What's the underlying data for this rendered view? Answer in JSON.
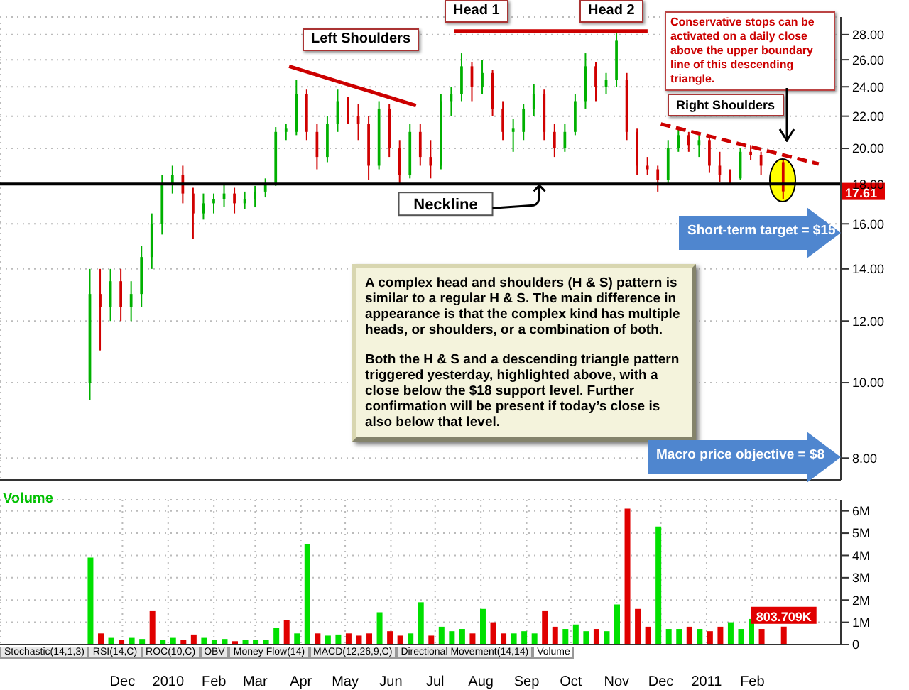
{
  "chart_data": [
    {
      "type": "candlestick",
      "x": [
        "2009-11-09",
        "2009-11-16",
        "2009-11-23",
        "2009-11-30",
        "2009-12-07",
        "2009-12-14",
        "2009-12-21",
        "2009-12-28",
        "2010-01-04",
        "2010-01-11",
        "2010-01-18",
        "2010-01-25",
        "2010-02-01",
        "2010-02-08",
        "2010-02-15",
        "2010-02-22",
        "2010-03-01",
        "2010-03-08",
        "2010-03-15",
        "2010-03-22",
        "2010-03-29",
        "2010-04-05",
        "2010-04-12",
        "2010-04-19",
        "2010-04-26",
        "2010-05-03",
        "2010-05-10",
        "2010-05-17",
        "2010-05-24",
        "2010-05-31",
        "2010-06-07",
        "2010-06-14",
        "2010-06-21",
        "2010-06-28",
        "2010-07-05",
        "2010-07-12",
        "2010-07-19",
        "2010-07-26",
        "2010-08-02",
        "2010-08-09",
        "2010-08-16",
        "2010-08-23",
        "2010-08-30",
        "2010-09-06",
        "2010-09-13",
        "2010-09-20",
        "2010-09-27",
        "2010-10-04",
        "2010-10-11",
        "2010-10-18",
        "2010-10-25",
        "2010-11-01",
        "2010-11-08",
        "2010-11-15",
        "2010-11-22",
        "2010-11-29",
        "2010-12-06",
        "2010-12-13",
        "2010-12-20",
        "2010-12-27",
        "2011-01-03",
        "2011-01-10",
        "2011-01-17",
        "2011-01-24",
        "2011-01-31",
        "2011-02-07",
        "2011-02-22"
      ],
      "ohlc": [
        [
          10,
          14,
          9.5,
          13
        ],
        [
          13,
          14,
          11,
          12.5
        ],
        [
          12.5,
          14,
          12,
          13.5
        ],
        [
          13.5,
          14,
          12,
          12.5
        ],
        [
          12.5,
          13.5,
          12,
          13
        ],
        [
          13,
          15,
          12.5,
          14.5
        ],
        [
          14.5,
          16.5,
          14,
          16
        ],
        [
          16,
          18.5,
          15.5,
          18
        ],
        [
          18,
          19,
          17.5,
          18.5
        ],
        [
          18.5,
          19,
          17,
          17.5
        ],
        [
          17.5,
          17.8,
          15.3,
          16.5
        ],
        [
          16.5,
          17.5,
          16.2,
          17
        ],
        [
          17,
          17.5,
          16.5,
          17.2
        ],
        [
          17.2,
          18,
          16.8,
          17.5
        ],
        [
          17.5,
          17.8,
          16.5,
          17
        ],
        [
          17,
          17.6,
          16.7,
          17.2
        ],
        [
          17.2,
          17.9,
          16.8,
          17.6
        ],
        [
          17.6,
          18.3,
          17.3,
          18
        ],
        [
          18,
          21.3,
          17.9,
          21
        ],
        [
          21,
          21.5,
          20.5,
          21.2
        ],
        [
          21,
          24.5,
          20.8,
          23.5
        ],
        [
          23.5,
          23.8,
          20.5,
          21
        ],
        [
          21,
          21.5,
          18.8,
          19.5
        ],
        [
          19.5,
          22,
          19.2,
          21.5
        ],
        [
          21.5,
          23.8,
          21,
          23
        ],
        [
          23,
          23.3,
          21.5,
          22
        ],
        [
          22,
          22.8,
          20.5,
          21.5
        ],
        [
          21.5,
          22,
          18.2,
          19
        ],
        [
          19,
          23,
          18.8,
          22.5
        ],
        [
          22.5,
          22.8,
          19.5,
          20
        ],
        [
          20,
          20.5,
          18,
          18.5
        ],
        [
          18.5,
          21.5,
          18.3,
          21
        ],
        [
          21,
          21.5,
          19,
          19.5
        ],
        [
          19.5,
          20.5,
          18.3,
          19
        ],
        [
          19,
          23.5,
          18.8,
          23
        ],
        [
          23,
          24,
          22,
          23.5
        ],
        [
          23.5,
          26.5,
          23,
          25.5
        ],
        [
          25.5,
          25.8,
          23,
          24
        ],
        [
          24,
          26,
          23.5,
          25
        ],
        [
          25,
          25.2,
          22,
          22.5
        ],
        [
          22.5,
          23,
          20.5,
          21
        ],
        [
          21,
          21.8,
          19.8,
          21.2
        ],
        [
          21,
          22.8,
          20.5,
          22.5
        ],
        [
          22.5,
          24.2,
          22,
          23.5
        ],
        [
          23.5,
          23.8,
          20.5,
          21
        ],
        [
          21,
          21.5,
          19.5,
          20
        ],
        [
          20,
          21.5,
          19.8,
          21
        ],
        [
          21,
          23.5,
          20.8,
          23
        ],
        [
          23,
          26.5,
          22.5,
          25.5
        ],
        [
          25.5,
          25.8,
          23,
          24
        ],
        [
          24,
          25,
          23.5,
          24.5
        ],
        [
          24.5,
          28.3,
          24,
          27.5
        ],
        [
          24.5,
          25,
          20.5,
          21
        ],
        [
          21,
          21.2,
          18.5,
          19
        ],
        [
          19,
          19.5,
          18.5,
          18.8
        ],
        [
          18.8,
          19,
          17.6,
          18.2
        ],
        [
          18.2,
          20.5,
          18,
          20
        ],
        [
          20,
          21.3,
          19.8,
          20.8
        ],
        [
          20.8,
          21,
          19.8,
          20.2
        ],
        [
          20.2,
          20.8,
          19.5,
          20.5
        ],
        [
          20.5,
          20.6,
          18.6,
          19
        ],
        [
          19,
          19.8,
          18.1,
          18.5
        ],
        [
          18.5,
          18.8,
          18,
          18.3
        ],
        [
          18.3,
          20,
          18.2,
          19.8
        ],
        [
          19.8,
          20.2,
          19.3,
          19.6
        ],
        [
          19.6,
          19.8,
          18.5,
          19
        ],
        [
          19.2,
          19.3,
          17.2,
          17.61
        ]
      ],
      "colors": [
        "#00b000",
        "#d00000",
        "#00b000",
        "#d00000",
        "#00b000",
        "#00b000",
        "#00b000",
        "#00b000",
        "#00b000",
        "#d00000",
        "#d00000",
        "#00b000",
        "#00b000",
        "#00b000",
        "#d00000",
        "#00b000",
        "#00b000",
        "#00b000",
        "#00b000",
        "#00b000",
        "#00b000",
        "#d00000",
        "#d00000",
        "#00b000",
        "#00b000",
        "#d00000",
        "#d00000",
        "#d00000",
        "#00b000",
        "#d00000",
        "#d00000",
        "#00b000",
        "#d00000",
        "#d00000",
        "#00b000",
        "#00b000",
        "#00b000",
        "#d00000",
        "#00b000",
        "#d00000",
        "#d00000",
        "#00b000",
        "#00b000",
        "#00b000",
        "#d00000",
        "#d00000",
        "#00b000",
        "#00b000",
        "#00b000",
        "#d00000",
        "#00b000",
        "#00b000",
        "#d00000",
        "#d00000",
        "#d00000",
        "#d00000",
        "#00b000",
        "#00b000",
        "#d00000",
        "#00b000",
        "#d00000",
        "#d00000",
        "#d00000",
        "#00b000",
        "#d00000",
        "#d00000",
        "#d00000"
      ],
      "series": [
        {
          "type": "line",
          "color": "#cc0000",
          "x": [
            "2010-03-24",
            "2010-06-18"
          ],
          "values": [
            25.5,
            22.7
          ],
          "line_style": "solid"
        },
        {
          "type": "line",
          "color": "#cc0000",
          "x": [
            "2010-07-14",
            "2010-11-22"
          ],
          "values": [
            28.3,
            28.3
          ],
          "line_style": "solid"
        },
        {
          "type": "line",
          "color": "#cc0000",
          "x": [
            "2010-12-01",
            "2011-03-18"
          ],
          "values": [
            21.5,
            19.1
          ],
          "line_style": "dashed"
        }
      ],
      "ref_lines": [
        {
          "axis": "y",
          "value": 18,
          "label": "Neckline",
          "color": "#000000"
        }
      ],
      "log": true,
      "xlim": [
        "2009-09-09",
        "2011-04-02"
      ],
      "xticks": [
        {
          "value": "2009-12-01",
          "label": null
        },
        {
          "value": "2010-01-01",
          "label": null
        },
        {
          "value": "2010-02-01",
          "label": null
        },
        {
          "value": "2010-03-01",
          "label": null
        },
        {
          "value": "2010-04-01",
          "label": null
        },
        {
          "value": "2010-05-01",
          "label": null
        },
        {
          "value": "2010-06-01",
          "label": null
        },
        {
          "value": "2010-07-01",
          "label": null
        },
        {
          "value": "2010-08-01",
          "label": null
        },
        {
          "value": "2010-09-01",
          "label": null
        },
        {
          "value": "2010-10-01",
          "label": null
        },
        {
          "value": "2010-11-01",
          "label": null
        },
        {
          "value": "2010-12-01",
          "label": null
        },
        {
          "value": "2011-01-01",
          "label": null
        },
        {
          "value": "2011-02-01",
          "label": null
        }
      ],
      "ylim": [
        7.5,
        29.5
      ],
      "yticks": [
        {
          "value": 8,
          "label": "8.00"
        },
        {
          "value": 10,
          "label": "10.00"
        },
        {
          "value": 12,
          "label": "12.00"
        },
        {
          "value": 14,
          "label": "14.00"
        },
        {
          "value": 16,
          "label": "16.00"
        },
        {
          "value": 18,
          "label": "18.00"
        },
        {
          "value": 20,
          "label": "20.00"
        },
        {
          "value": 22,
          "label": "22.00"
        },
        {
          "value": 24,
          "label": "24.00"
        },
        {
          "value": 26,
          "label": "26.00"
        },
        {
          "value": 28,
          "label": "28.00"
        }
      ],
      "tick_labels": "y",
      "grid": true,
      "annotations": [
        "A complex head and shoulders (H & S) pattern is similar to a regular H & S. The main difference in appearance is that the complex kind has multiple heads, or shoulders, or a combination of both.",
        "Both the H & S and a descending triangle pattern triggered yesterday, highlighted above, with a close below the $18 support level. Further confirmation will be present if today’s close is also below that level.",
        "Conservative stops can be activated on a daily close above the upper boundary line of this descending triangle.",
        "Short-term target = $15",
        "Macro price objective = $8",
        "Head 1",
        "Head 2",
        "Left Shoulders",
        "Right Shoulders",
        "17.61"
      ]
    },
    {
      "type": "bar",
      "title": "Volume",
      "x": [
        "2009-11-09",
        "2009-11-16",
        "2009-11-23",
        "2009-11-30",
        "2009-12-07",
        "2009-12-14",
        "2009-12-21",
        "2009-12-28",
        "2010-01-04",
        "2010-01-11",
        "2010-01-18",
        "2010-01-25",
        "2010-02-01",
        "2010-02-08",
        "2010-02-15",
        "2010-02-22",
        "2010-03-01",
        "2010-03-08",
        "2010-03-15",
        "2010-03-22",
        "2010-03-29",
        "2010-04-05",
        "2010-04-12",
        "2010-04-19",
        "2010-04-26",
        "2010-05-03",
        "2010-05-10",
        "2010-05-17",
        "2010-05-24",
        "2010-05-31",
        "2010-06-07",
        "2010-06-14",
        "2010-06-21",
        "2010-06-28",
        "2010-07-05",
        "2010-07-12",
        "2010-07-19",
        "2010-07-26",
        "2010-08-02",
        "2010-08-09",
        "2010-08-16",
        "2010-08-23",
        "2010-08-30",
        "2010-09-06",
        "2010-09-13",
        "2010-09-20",
        "2010-09-27",
        "2010-10-04",
        "2010-10-11",
        "2010-10-18",
        "2010-10-25",
        "2010-11-01",
        "2010-11-08",
        "2010-11-15",
        "2010-11-22",
        "2010-11-29",
        "2010-12-06",
        "2010-12-13",
        "2010-12-20",
        "2010-12-27",
        "2011-01-03",
        "2011-01-10",
        "2011-01-17",
        "2011-01-24",
        "2011-01-31",
        "2011-02-07",
        "2011-02-22"
      ],
      "values": [
        3900000,
        500000,
        300000,
        200000,
        300000,
        250000,
        1500000,
        200000,
        300000,
        200000,
        450000,
        300000,
        200000,
        250000,
        150000,
        200000,
        200000,
        200000,
        750000,
        1100000,
        500000,
        4500000,
        500000,
        400000,
        450000,
        500000,
        400000,
        500000,
        1450000,
        600000,
        400000,
        500000,
        1900000,
        400000,
        800000,
        600000,
        700000,
        500000,
        1600000,
        1000000,
        500000,
        500000,
        600000,
        500000,
        1500000,
        800000,
        700000,
        900000,
        600000,
        700000,
        600000,
        1800000,
        6100000,
        1600000,
        800000,
        5300000,
        700000,
        700000,
        800000,
        700000,
        600000,
        800000,
        1000000,
        700000,
        1150000,
        700000,
        803709
      ],
      "colors": [
        "#00e000",
        "#e00000",
        "#00e000",
        "#e00000",
        "#00e000",
        "#00e000",
        "#e00000",
        "#00e000",
        "#00e000",
        "#e00000",
        "#e00000",
        "#00e000",
        "#00e000",
        "#00e000",
        "#e00000",
        "#00e000",
        "#00e000",
        "#00e000",
        "#00e000",
        "#e00000",
        "#00e000",
        "#00e000",
        "#e00000",
        "#00e000",
        "#00e000",
        "#e00000",
        "#e00000",
        "#e00000",
        "#00e000",
        "#e00000",
        "#e00000",
        "#00e000",
        "#00e000",
        "#e00000",
        "#00e000",
        "#00e000",
        "#00e000",
        "#e00000",
        "#00e000",
        "#e00000",
        "#e00000",
        "#00e000",
        "#00e000",
        "#00e000",
        "#e00000",
        "#e00000",
        "#00e000",
        "#00e000",
        "#00e000",
        "#e00000",
        "#00e000",
        "#00e000",
        "#e00000",
        "#e00000",
        "#e00000",
        "#00e000",
        "#00e000",
        "#00e000",
        "#e00000",
        "#00e000",
        "#e00000",
        "#e00000",
        "#00e000",
        "#00e000",
        "#00e000",
        "#e00000",
        "#e00000"
      ],
      "value_labels": [
        null,
        null,
        null,
        null,
        null,
        null,
        null,
        null,
        null,
        null,
        null,
        null,
        null,
        null,
        null,
        null,
        null,
        null,
        null,
        null,
        null,
        null,
        null,
        null,
        null,
        null,
        null,
        null,
        null,
        null,
        null,
        null,
        null,
        null,
        null,
        null,
        null,
        null,
        null,
        null,
        null,
        null,
        null,
        null,
        null,
        null,
        null,
        null,
        null,
        null,
        null,
        null,
        null,
        null,
        null,
        null,
        null,
        null,
        null,
        null,
        null,
        null,
        null,
        null,
        null,
        null,
        "803.709K"
      ],
      "xlim": [
        "2009-09-09",
        "2011-04-02"
      ],
      "xticks": [
        {
          "value": "2009-12-01",
          "label": "Dec"
        },
        {
          "value": "2010-01-01",
          "label": "2010"
        },
        {
          "value": "2010-02-01",
          "label": "Feb"
        },
        {
          "value": "2010-03-01",
          "label": "Mar"
        },
        {
          "value": "2010-04-01",
          "label": "Apr"
        },
        {
          "value": "2010-05-01",
          "label": "May"
        },
        {
          "value": "2010-06-01",
          "label": "Jun"
        },
        {
          "value": "2010-07-01",
          "label": "Jul"
        },
        {
          "value": "2010-08-01",
          "label": "Aug"
        },
        {
          "value": "2010-09-01",
          "label": "Sep"
        },
        {
          "value": "2010-10-01",
          "label": "Oct"
        },
        {
          "value": "2010-11-01",
          "label": "Nov"
        },
        {
          "value": "2010-12-01",
          "label": "Dec"
        },
        {
          "value": "2011-01-01",
          "label": "2011"
        },
        {
          "value": "2011-02-01",
          "label": "Feb"
        }
      ],
      "ylim": [
        0,
        6500000
      ],
      "yticks": [
        0,
        {
          "value": 1000000,
          "label": "1M"
        },
        {
          "value": 2000000,
          "label": "2M"
        },
        {
          "value": 3000000,
          "label": "3M"
        },
        {
          "value": 4000000,
          "label": "4M"
        },
        {
          "value": 5000000,
          "label": "5M"
        },
        {
          "value": 6000000,
          "label": "6M"
        }
      ],
      "grid": true,
      "annotations": [
        "Stochastic(14,1,3)",
        "RSI(14,C)",
        "ROC(10,C)",
        "OBV",
        "Money Flow(14)",
        "MACD(12,26,9,C)",
        "Directional Movement(14,14)",
        "Volume"
      ]
    }
  ]
}
